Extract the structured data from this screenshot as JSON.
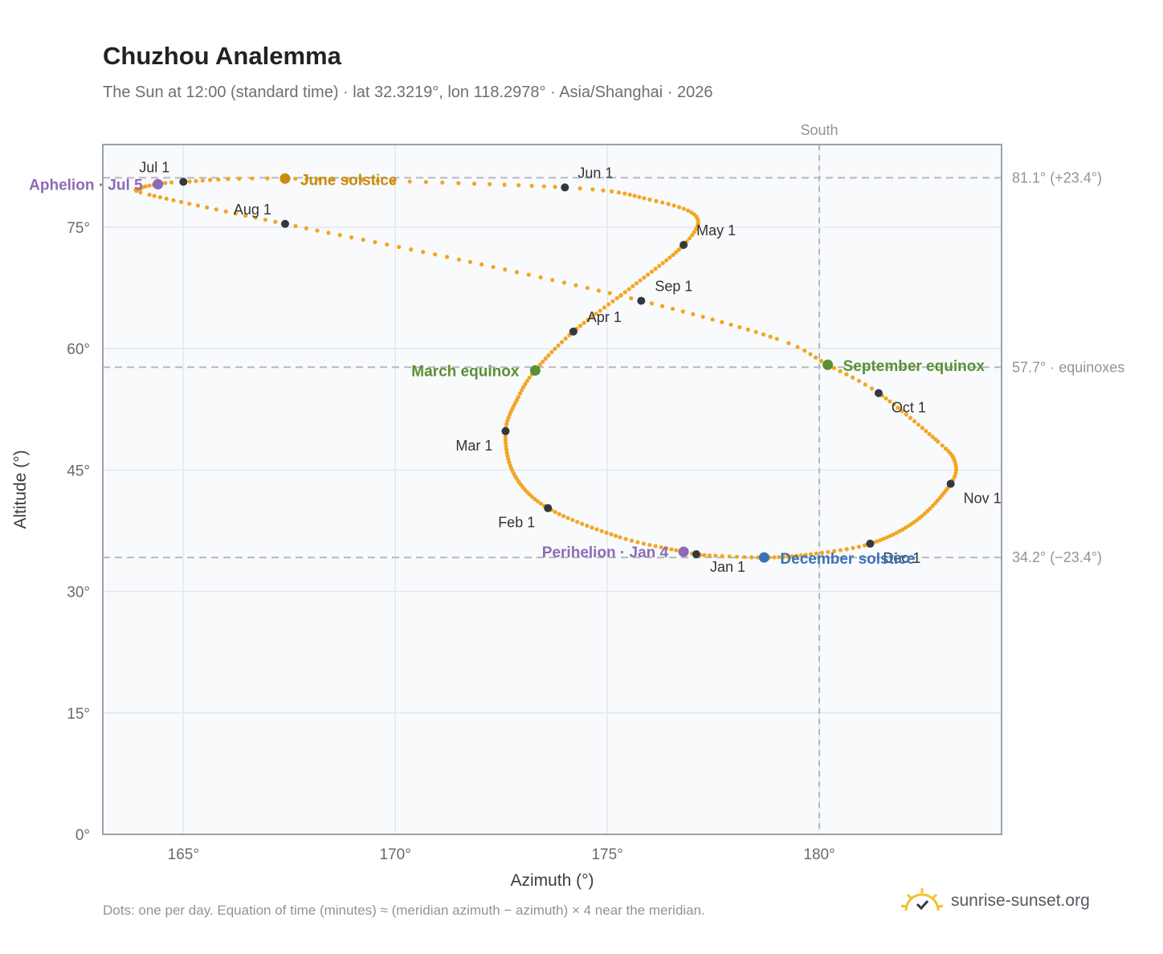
{
  "header": {
    "title": "Chuzhou Analemma",
    "subtitle": "The Sun at 12:00 (standard time) · lat 32.3219°, lon 118.2978° · Asia/Shanghai · 2026"
  },
  "footer": {
    "note": "Dots: one per day. Equation of time (minutes) ≈ (meridian azimuth − azimuth) × 4 near the meridian.",
    "brand": "sunrise-sunset.org",
    "brand_icon": "sun-horizon-icon"
  },
  "colors": {
    "path": "#f2a623",
    "month_dot": "#333840",
    "aphelion": "#8e6bb4",
    "perihelion": "#8e6bb4",
    "solstice_june": "#c98a10",
    "solstice_december": "#3a72b6",
    "equinox": "#5a8f32",
    "grid": "#e4e8ee",
    "plot_bg": "#f8fafc",
    "reference": "#b4b9c0"
  },
  "chart_data": {
    "type": "scatter",
    "title": "Chuzhou Analemma",
    "subtitle": "The Sun at 12:00 (standard time) · lat 32.3219°, lon 118.2978° · Asia/Shanghai · 2026",
    "xlabel": "Azimuth (°)",
    "ylabel": "Altitude (°)",
    "xlim": [
      163.1,
      184.3
    ],
    "ylim": [
      0,
      85.2
    ],
    "x_ticks": [
      165,
      170,
      175,
      180
    ],
    "x_tick_labels": [
      "165°",
      "170°",
      "175°",
      "180°"
    ],
    "y_ticks": [
      0,
      15,
      30,
      45,
      60,
      75
    ],
    "y_tick_labels": [
      "0°",
      "15°",
      "30°",
      "45°",
      "60°",
      "75°"
    ],
    "grid": true,
    "reference_lines": {
      "vertical": [
        {
          "x": 180,
          "label": "South"
        }
      ],
      "horizontal": [
        {
          "y": 81.1,
          "label": "81.1° (+23.4°)"
        },
        {
          "y": 57.7,
          "label": "57.7° · equinoxes"
        },
        {
          "y": 34.2,
          "label": "34.2° (−23.4°)"
        }
      ]
    },
    "daily_points_label": "one per day",
    "months": [
      {
        "label": "Jan 1",
        "az": 177.1,
        "alt": 34.6
      },
      {
        "label": "Feb 1",
        "az": 173.6,
        "alt": 40.3
      },
      {
        "label": "Mar 1",
        "az": 172.6,
        "alt": 49.8
      },
      {
        "label": "Apr 1",
        "az": 174.2,
        "alt": 62.1
      },
      {
        "label": "May 1",
        "az": 176.8,
        "alt": 72.8
      },
      {
        "label": "Jun 1",
        "az": 174.0,
        "alt": 79.9
      },
      {
        "label": "Jul 1",
        "az": 165.0,
        "alt": 80.6
      },
      {
        "label": "Aug 1",
        "az": 167.4,
        "alt": 75.4
      },
      {
        "label": "Sep 1",
        "az": 175.8,
        "alt": 65.9
      },
      {
        "label": "Oct 1",
        "az": 181.4,
        "alt": 54.5
      },
      {
        "label": "Nov 1",
        "az": 183.1,
        "alt": 43.3
      },
      {
        "label": "Dec 1",
        "az": 181.2,
        "alt": 35.9
      }
    ],
    "events": [
      {
        "label": "March equinox",
        "az": 173.3,
        "alt": 57.3,
        "kind": "equinox"
      },
      {
        "label": "June solstice",
        "az": 167.4,
        "alt": 81.0,
        "kind": "solstice_june"
      },
      {
        "label": "Aphelion · Jul 5",
        "az": 164.4,
        "alt": 80.3,
        "kind": "aphelion"
      },
      {
        "label": "September equinox",
        "az": 180.2,
        "alt": 58.0,
        "kind": "equinox"
      },
      {
        "label": "December solstice",
        "az": 178.7,
        "alt": 34.2,
        "kind": "solstice_december"
      },
      {
        "label": "Perihelion · Jan 4",
        "az": 176.8,
        "alt": 34.9,
        "kind": "perihelion"
      }
    ],
    "path_keypoints": [
      {
        "day": 0,
        "az": 177.1,
        "alt": 34.6
      },
      {
        "day": 3,
        "az": 176.8,
        "alt": 34.9
      },
      {
        "day": 15,
        "az": 175.3,
        "alt": 36.7
      },
      {
        "day": 31,
        "az": 173.6,
        "alt": 40.3
      },
      {
        "day": 45,
        "az": 172.8,
        "alt": 44.5
      },
      {
        "day": 59,
        "az": 172.6,
        "alt": 49.8
      },
      {
        "day": 70,
        "az": 172.9,
        "alt": 54.0
      },
      {
        "day": 78,
        "az": 173.3,
        "alt": 57.3
      },
      {
        "day": 90,
        "az": 174.2,
        "alt": 62.1
      },
      {
        "day": 105,
        "az": 175.6,
        "alt": 67.7
      },
      {
        "day": 120,
        "az": 176.8,
        "alt": 72.8
      },
      {
        "day": 130,
        "az": 177.1,
        "alt": 76.3
      },
      {
        "day": 140,
        "az": 176.0,
        "alt": 78.4
      },
      {
        "day": 151,
        "az": 174.0,
        "alt": 79.9
      },
      {
        "day": 171,
        "az": 167.4,
        "alt": 81.0
      },
      {
        "day": 181,
        "az": 165.0,
        "alt": 80.6
      },
      {
        "day": 185,
        "az": 164.4,
        "alt": 80.3
      },
      {
        "day": 190,
        "az": 164.0,
        "alt": 79.8
      },
      {
        "day": 196,
        "az": 164.2,
        "alt": 79.0
      },
      {
        "day": 212,
        "az": 167.4,
        "alt": 75.4
      },
      {
        "day": 227,
        "az": 171.5,
        "alt": 71.0
      },
      {
        "day": 243,
        "az": 175.8,
        "alt": 65.9
      },
      {
        "day": 258,
        "az": 179.0,
        "alt": 61.2
      },
      {
        "day": 265,
        "az": 180.2,
        "alt": 58.0
      },
      {
        "day": 273,
        "az": 181.4,
        "alt": 54.5
      },
      {
        "day": 289,
        "az": 182.8,
        "alt": 48.5
      },
      {
        "day": 297,
        "az": 183.2,
        "alt": 46.0
      },
      {
        "day": 304,
        "az": 183.1,
        "alt": 43.3
      },
      {
        "day": 319,
        "az": 182.3,
        "alt": 38.8
      },
      {
        "day": 334,
        "az": 181.2,
        "alt": 35.9
      },
      {
        "day": 344,
        "az": 179.8,
        "alt": 34.6
      },
      {
        "day": 354,
        "az": 178.7,
        "alt": 34.2
      },
      {
        "day": 364,
        "az": 177.2,
        "alt": 34.5
      }
    ]
  }
}
